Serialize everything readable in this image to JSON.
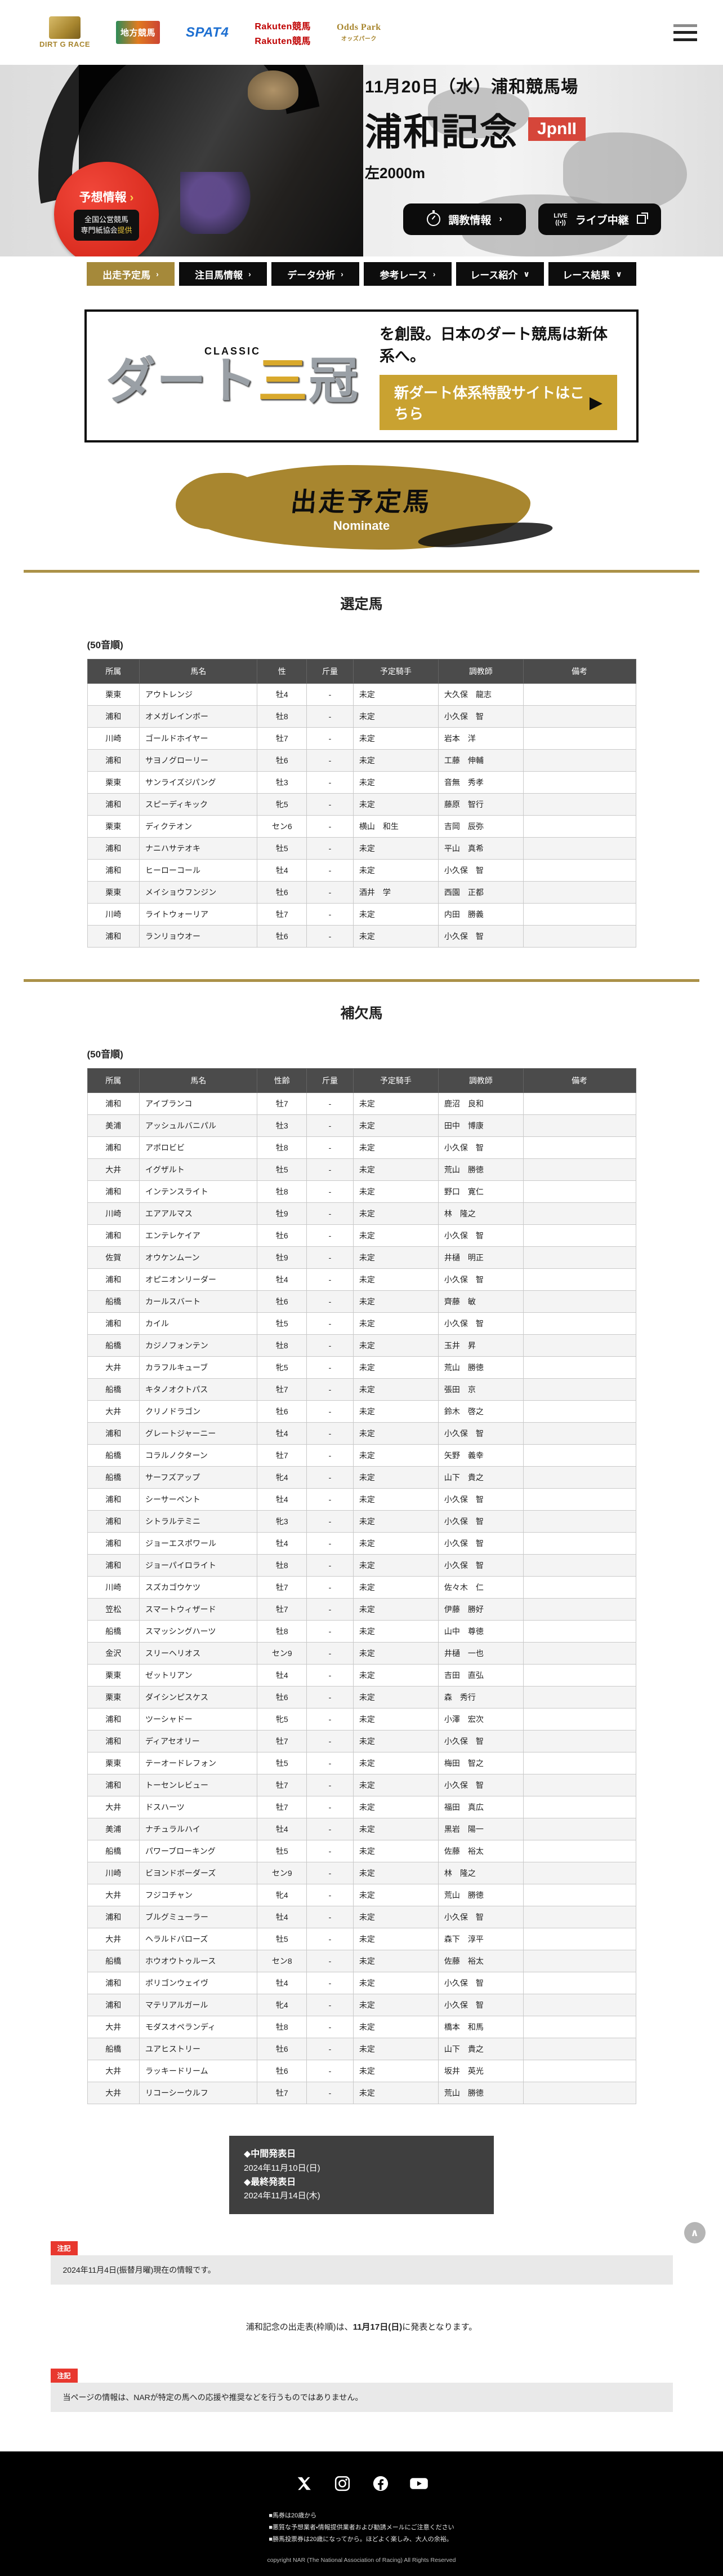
{
  "header": {
    "logos": [
      {
        "name": "dirt-g-race-logo",
        "lines": [
          "DIRT G RACE"
        ]
      },
      {
        "name": "chihou-keiba-logo",
        "lines": [
          "地方競馬"
        ]
      },
      {
        "name": "spat4-logo",
        "lines": [
          "SPAT4"
        ]
      },
      {
        "name": "rakuten-keiba-logo",
        "lines": [
          "Rakuten競馬",
          "Rakuten競馬"
        ]
      },
      {
        "name": "oddspark-logo",
        "lines": [
          "Odds Park",
          "オッズパーク"
        ]
      }
    ]
  },
  "hero": {
    "date_venue": "11月20日（水）浦和競馬場",
    "race_name": "浦和記念",
    "grade": "JpnII",
    "distance": "左2000m",
    "forecast": {
      "title": "予想情報",
      "arrow": "›",
      "line1": "全国公営競馬",
      "line2_pre": "専門紙協会",
      "line2_em": "提供"
    },
    "training_button": "調教情報",
    "training_chevron": "›",
    "live_tag": "LIVE",
    "live_button": "ライブ中継"
  },
  "nav": {
    "tabs": [
      {
        "label": "出走予定馬",
        "arrow": "›",
        "active": true
      },
      {
        "label": "注目馬情報",
        "arrow": "›",
        "active": false
      },
      {
        "label": "データ分析",
        "arrow": "›",
        "active": false
      },
      {
        "label": "参考レース",
        "arrow": "›",
        "active": false
      },
      {
        "label": "レース紹介",
        "arrow": "∨",
        "active": false
      },
      {
        "label": "レース結果",
        "arrow": "∨",
        "active": false
      }
    ]
  },
  "dart_banner": {
    "classic": "CLASSIC",
    "logo_part1": "ダート",
    "logo_part2": "三",
    "logo_part3": "冠",
    "text": "を創設。日本のダート競馬は新体系へ。",
    "button": "新ダート体系特設サイトはこちら",
    "button_arrow": "▶"
  },
  "section": {
    "title": "出走予定馬",
    "subtitle": "Nominate"
  },
  "selected": {
    "heading": "選定馬",
    "order_note": "(50音順)",
    "columns": [
      "所属",
      "馬名",
      "性",
      "斤量",
      "予定騎手",
      "調教師",
      "備考"
    ],
    "rows": [
      [
        "栗東",
        "アウトレンジ",
        "牡4",
        "-",
        "未定",
        "大久保　龍志",
        ""
      ],
      [
        "浦和",
        "オメガレインボー",
        "牡8",
        "-",
        "未定",
        "小久保　智",
        ""
      ],
      [
        "川崎",
        "ゴールドホイヤー",
        "牡7",
        "-",
        "未定",
        "岩本　洋",
        ""
      ],
      [
        "浦和",
        "サヨノグローリー",
        "牡6",
        "-",
        "未定",
        "工藤　伸輔",
        ""
      ],
      [
        "栗東",
        "サンライズジパング",
        "牡3",
        "-",
        "未定",
        "音無　秀孝",
        ""
      ],
      [
        "浦和",
        "スピーディキック",
        "牝5",
        "-",
        "未定",
        "藤原　智行",
        ""
      ],
      [
        "栗東",
        "ディクテオン",
        "セン6",
        "-",
        "横山　和生",
        "吉岡　辰弥",
        ""
      ],
      [
        "浦和",
        "ナニハサテオキ",
        "牡5",
        "-",
        "未定",
        "平山　真希",
        ""
      ],
      [
        "浦和",
        "ヒーローコール",
        "牡4",
        "-",
        "未定",
        "小久保　智",
        ""
      ],
      [
        "栗東",
        "メイショウフンジン",
        "牡6",
        "-",
        "酒井　学",
        "西園　正都",
        ""
      ],
      [
        "川崎",
        "ライトウォーリア",
        "牡7",
        "-",
        "未定",
        "内田　勝義",
        ""
      ],
      [
        "浦和",
        "ランリョウオー",
        "牡6",
        "-",
        "未定",
        "小久保　智",
        ""
      ]
    ]
  },
  "reserve": {
    "heading": "補欠馬",
    "order_note": "(50音順)",
    "columns": [
      "所属",
      "馬名",
      "性齢",
      "斤量",
      "予定騎手",
      "調教師",
      "備考"
    ],
    "rows": [
      [
        "浦和",
        "アイブランコ",
        "牡7",
        "-",
        "未定",
        "鹿沼　良和",
        ""
      ],
      [
        "美浦",
        "アッシュルバニパル",
        "牡3",
        "-",
        "未定",
        "田中　博康",
        ""
      ],
      [
        "浦和",
        "アポロビビ",
        "牡8",
        "-",
        "未定",
        "小久保　智",
        ""
      ],
      [
        "大井",
        "イグザルト",
        "牡5",
        "-",
        "未定",
        "荒山　勝徳",
        ""
      ],
      [
        "浦和",
        "インテンスライト",
        "牡8",
        "-",
        "未定",
        "野口　寛仁",
        ""
      ],
      [
        "川崎",
        "エアアルマス",
        "牡9",
        "-",
        "未定",
        "林　隆之",
        ""
      ],
      [
        "浦和",
        "エンテレケイア",
        "牡6",
        "-",
        "未定",
        "小久保　智",
        ""
      ],
      [
        "佐賀",
        "オウケンムーン",
        "牡9",
        "-",
        "未定",
        "井樋　明正",
        ""
      ],
      [
        "浦和",
        "オピニオンリーダー",
        "牡4",
        "-",
        "未定",
        "小久保　智",
        ""
      ],
      [
        "船橋",
        "カールスバート",
        "牡6",
        "-",
        "未定",
        "齊藤　敏",
        ""
      ],
      [
        "浦和",
        "カイル",
        "牡5",
        "-",
        "未定",
        "小久保　智",
        ""
      ],
      [
        "船橋",
        "カジノフォンテン",
        "牡8",
        "-",
        "未定",
        "玉井　昇",
        ""
      ],
      [
        "大井",
        "カラフルキューブ",
        "牝5",
        "-",
        "未定",
        "荒山　勝徳",
        ""
      ],
      [
        "船橋",
        "キタノオクトパス",
        "牡7",
        "-",
        "未定",
        "張田　京",
        ""
      ],
      [
        "大井",
        "クリノドラゴン",
        "牡6",
        "-",
        "未定",
        "鈴木　啓之",
        ""
      ],
      [
        "浦和",
        "グレートジャーニー",
        "牡4",
        "-",
        "未定",
        "小久保　智",
        ""
      ],
      [
        "船橋",
        "コラルノクターン",
        "牡7",
        "-",
        "未定",
        "矢野　義幸",
        ""
      ],
      [
        "船橋",
        "サーフズアップ",
        "牝4",
        "-",
        "未定",
        "山下　貴之",
        ""
      ],
      [
        "浦和",
        "シーサーペント",
        "牡4",
        "-",
        "未定",
        "小久保　智",
        ""
      ],
      [
        "浦和",
        "シトラルテミニ",
        "牝3",
        "-",
        "未定",
        "小久保　智",
        ""
      ],
      [
        "浦和",
        "ジョーエスポワール",
        "牡4",
        "-",
        "未定",
        "小久保　智",
        ""
      ],
      [
        "浦和",
        "ジョーパイロライト",
        "牡8",
        "-",
        "未定",
        "小久保　智",
        ""
      ],
      [
        "川崎",
        "スズカゴウケツ",
        "牡7",
        "-",
        "未定",
        "佐々木　仁",
        ""
      ],
      [
        "笠松",
        "スマートウィザード",
        "牡7",
        "-",
        "未定",
        "伊藤　勝好",
        ""
      ],
      [
        "船橋",
        "スマッシングハーツ",
        "牡8",
        "-",
        "未定",
        "山中　尊徳",
        ""
      ],
      [
        "金沢",
        "スリーヘリオス",
        "セン9",
        "-",
        "未定",
        "井樋　一也",
        ""
      ],
      [
        "栗東",
        "ゼットリアン",
        "牡4",
        "-",
        "未定",
        "吉田　直弘",
        ""
      ],
      [
        "栗東",
        "ダイシンピスケス",
        "牡6",
        "-",
        "未定",
        "森　秀行",
        ""
      ],
      [
        "浦和",
        "ツーシャドー",
        "牝5",
        "-",
        "未定",
        "小澤　宏次",
        ""
      ],
      [
        "浦和",
        "ディアセオリー",
        "牡7",
        "-",
        "未定",
        "小久保　智",
        ""
      ],
      [
        "栗東",
        "テーオードレフォン",
        "牡5",
        "-",
        "未定",
        "梅田　智之",
        ""
      ],
      [
        "浦和",
        "トーセンレビュー",
        "牡7",
        "-",
        "未定",
        "小久保　智",
        ""
      ],
      [
        "大井",
        "ドスハーツ",
        "牡7",
        "-",
        "未定",
        "福田　真広",
        ""
      ],
      [
        "美浦",
        "ナチュラルハイ",
        "牡4",
        "-",
        "未定",
        "黒岩　陽一",
        ""
      ],
      [
        "船橋",
        "パワーブローキング",
        "牡5",
        "-",
        "未定",
        "佐藤　裕太",
        ""
      ],
      [
        "川崎",
        "ビヨンドボーダーズ",
        "セン9",
        "-",
        "未定",
        "林　隆之",
        ""
      ],
      [
        "大井",
        "フジコチャン",
        "牝4",
        "-",
        "未定",
        "荒山　勝徳",
        ""
      ],
      [
        "浦和",
        "ブルグミューラー",
        "牡4",
        "-",
        "未定",
        "小久保　智",
        ""
      ],
      [
        "大井",
        "ヘラルドバローズ",
        "牡5",
        "-",
        "未定",
        "森下　淳平",
        ""
      ],
      [
        "船橋",
        "ホウオウトゥルース",
        "セン8",
        "-",
        "未定",
        "佐藤　裕太",
        ""
      ],
      [
        "浦和",
        "ポリゴンウェイヴ",
        "牡4",
        "-",
        "未定",
        "小久保　智",
        ""
      ],
      [
        "浦和",
        "マテリアルガール",
        "牝4",
        "-",
        "未定",
        "小久保　智",
        ""
      ],
      [
        "大井",
        "モダスオペランディ",
        "牡8",
        "-",
        "未定",
        "橋本　和馬",
        ""
      ],
      [
        "船橋",
        "ユアヒストリー",
        "牡6",
        "-",
        "未定",
        "山下　貴之",
        ""
      ],
      [
        "大井",
        "ラッキードリーム",
        "牡6",
        "-",
        "未定",
        "坂井　英光",
        ""
      ],
      [
        "大井",
        "リコーシーウルフ",
        "牡7",
        "-",
        "未定",
        "荒山　勝徳",
        ""
      ]
    ]
  },
  "announce": {
    "mid_label": "◆中間発表日",
    "mid_date": "2024年11月10日(日)",
    "final_label": "◆最終発表日",
    "final_date": "2024年11月14日(木)"
  },
  "note1": {
    "tag": "注記",
    "text": "2024年11月4日(振替月曜)現在の情報です。"
  },
  "frame_info": {
    "pre": "浦和記念の出走表(枠順)は、",
    "bold": "11月17日(日)",
    "post": "に発表となります。"
  },
  "note2": {
    "tag": "注記",
    "text": "当ページの情報は、NARが特定の馬への応援や推奨などを行うものではありません。"
  },
  "footer": {
    "social_icons": [
      "x-icon",
      "instagram-icon",
      "facebook-icon",
      "youtube-icon"
    ],
    "disclaimers": [
      "■馬券は20歳から",
      "■悪質な予想業者・情報提供業者および勧誘メールにご注意ください",
      "■勝馬投票券は20歳になってから。ほどよく楽しみ、大人の余裕。"
    ],
    "copyright": "copyright NAR (The National Association of Racing) All Rights Reserved"
  }
}
